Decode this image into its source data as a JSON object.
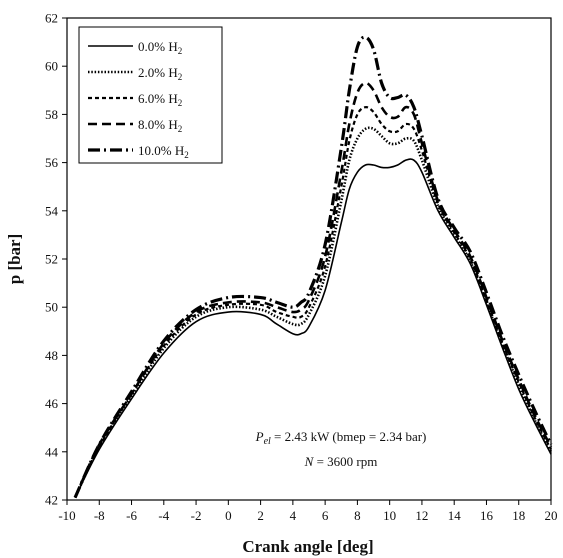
{
  "chart_data": {
    "type": "line",
    "title": "",
    "xlabel": "Crank angle [deg]",
    "ylabel": "p [bar]",
    "xlim": [
      -10,
      20
    ],
    "ylim": [
      42,
      62
    ],
    "xticks": [
      -10,
      -8,
      -6,
      -4,
      -2,
      0,
      2,
      4,
      6,
      8,
      10,
      12,
      14,
      16,
      18,
      20
    ],
    "yticks": [
      42,
      44,
      46,
      48,
      50,
      52,
      54,
      56,
      58,
      60,
      62
    ],
    "grid": false,
    "legend_position": "top-left",
    "annotation": {
      "line1": {
        "sym": "P",
        "sub": "el",
        "rest": " = 2.43 kW (bmep = 2.34 bar)"
      },
      "line2": {
        "sym": "N",
        "rest": " = 3600 rpm"
      }
    },
    "series": [
      {
        "name": "0.0% H",
        "name_sub": "2",
        "dash": "solid",
        "color": "#000000",
        "x": [
          -9.5,
          -8,
          -6,
          -4,
          -2,
          0,
          2,
          3,
          4,
          4.5,
          5,
          6,
          7,
          7.5,
          8,
          8.5,
          9,
          9.5,
          10,
          10.5,
          11,
          11.5,
          12,
          13,
          14,
          15,
          16,
          17,
          18,
          19,
          20
        ],
        "y": [
          42.1,
          44.1,
          46.2,
          48.1,
          49.4,
          49.8,
          49.7,
          49.3,
          48.9,
          48.9,
          49.2,
          50.7,
          53.5,
          54.9,
          55.6,
          55.9,
          55.9,
          55.8,
          55.8,
          55.9,
          56.1,
          56.1,
          55.6,
          54.0,
          52.9,
          51.8,
          50.1,
          48.3,
          46.6,
          45.2,
          43.9
        ]
      },
      {
        "name": "2.0% H",
        "name_sub": "2",
        "dash": "dotted",
        "color": "#000000",
        "x": [
          -9.5,
          -8,
          -6,
          -4,
          -2,
          0,
          2,
          3,
          4,
          4.5,
          5,
          6,
          7,
          7.5,
          8,
          8.5,
          9,
          9.5,
          10,
          10.5,
          11,
          11.5,
          12,
          13,
          14,
          15,
          16,
          17,
          18,
          19,
          20
        ],
        "y": [
          42.1,
          44.2,
          46.3,
          48.3,
          49.6,
          50.0,
          49.9,
          49.6,
          49.3,
          49.3,
          49.7,
          51.3,
          54.4,
          56.1,
          57.0,
          57.4,
          57.4,
          57.1,
          56.8,
          56.8,
          57.0,
          56.9,
          56.1,
          54.2,
          53.0,
          51.9,
          50.2,
          48.4,
          46.8,
          45.3,
          44.0
        ]
      },
      {
        "name": "6.0% H",
        "name_sub": "2",
        "dash": "dashed-short",
        "color": "#000000",
        "x": [
          -9.5,
          -8,
          -6,
          -4,
          -2,
          0,
          2,
          3,
          4,
          4.5,
          5,
          6,
          7,
          7.5,
          8,
          8.5,
          9,
          9.5,
          10,
          10.5,
          11,
          11.5,
          12,
          13,
          14,
          15,
          16,
          17,
          18,
          19,
          20
        ],
        "y": [
          42.1,
          44.2,
          46.4,
          48.4,
          49.7,
          50.1,
          50.1,
          49.8,
          49.6,
          49.6,
          50.0,
          51.7,
          55.0,
          56.9,
          58.0,
          58.3,
          58.1,
          57.6,
          57.3,
          57.3,
          57.6,
          57.4,
          56.5,
          54.3,
          53.1,
          52.0,
          50.3,
          48.5,
          46.9,
          45.4,
          44.1
        ]
      },
      {
        "name": "8.0% H",
        "name_sub": "2",
        "dash": "dashed-long",
        "color": "#000000",
        "x": [
          -9.5,
          -8,
          -6,
          -4,
          -2,
          0,
          2,
          3,
          4,
          4.5,
          5,
          6,
          7,
          7.5,
          8,
          8.5,
          9,
          9.5,
          10,
          10.5,
          11,
          11.5,
          12,
          13,
          14,
          15,
          16,
          17,
          18,
          19,
          20
        ],
        "y": [
          42.1,
          44.3,
          46.4,
          48.5,
          49.8,
          50.2,
          50.2,
          50.0,
          49.8,
          49.9,
          50.3,
          52.1,
          55.6,
          57.6,
          58.9,
          59.3,
          59.0,
          58.3,
          57.9,
          57.9,
          58.3,
          58.0,
          56.8,
          54.4,
          53.2,
          52.1,
          50.4,
          48.6,
          47.0,
          45.5,
          44.2
        ]
      },
      {
        "name": "10.0% H",
        "name_sub": "2",
        "dash": "dash-dot",
        "color": "#000000",
        "x": [
          -9.5,
          -8,
          -6,
          -4,
          -2,
          0,
          2,
          3,
          4,
          4.5,
          5,
          6,
          7,
          7.5,
          8,
          8.5,
          9,
          9.5,
          10,
          10.5,
          11,
          11.5,
          12,
          13,
          14,
          15,
          16,
          17,
          18,
          19,
          20
        ],
        "y": [
          42.1,
          44.3,
          46.5,
          48.6,
          49.9,
          50.4,
          50.4,
          50.2,
          50.0,
          50.2,
          50.6,
          52.6,
          56.6,
          59.0,
          60.8,
          61.2,
          60.7,
          59.3,
          58.7,
          58.7,
          58.8,
          58.3,
          57.1,
          54.5,
          53.3,
          52.3,
          50.6,
          48.8,
          47.2,
          45.7,
          44.3
        ]
      }
    ]
  }
}
